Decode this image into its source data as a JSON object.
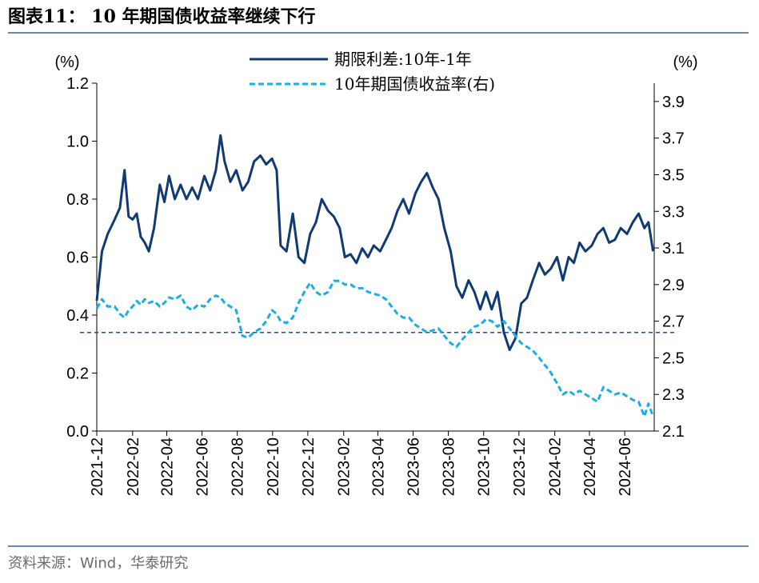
{
  "header": {
    "figure_title": "图表11： 10 年期国债收益率继续下行"
  },
  "footer": {
    "source": "资料来源：Wind，华泰研究"
  },
  "colors": {
    "spread": "#0f3a73",
    "yield": "#19aee6",
    "reference": "#1f4e8c",
    "rule": "#6e89a8"
  },
  "chart_data": {
    "type": "line",
    "title": "",
    "left_axis": {
      "unit_label": "(%)",
      "range": [
        0.0,
        1.2
      ],
      "ticks": [
        "0.0",
        "0.2",
        "0.4",
        "0.6",
        "0.8",
        "1.0",
        "1.2"
      ]
    },
    "right_axis": {
      "unit_label": "(%)",
      "range": [
        2.1,
        4.0
      ],
      "ticks": [
        "2.1",
        "2.3",
        "2.5",
        "2.7",
        "2.9",
        "3.1",
        "3.3",
        "3.5",
        "3.7",
        "3.9"
      ]
    },
    "x_axis": {
      "ticks": [
        "2021-12",
        "2022-02",
        "2022-04",
        "2022-06",
        "2022-08",
        "2022-10",
        "2022-12",
        "2023-02",
        "2023-04",
        "2023-06",
        "2023-08",
        "2023-10",
        "2023-12",
        "2024-02",
        "2024-04",
        "2024-06"
      ]
    },
    "legend": {
      "placement": "top-center"
    },
    "series": [
      {
        "name": "期限利差:10年-1年",
        "axis": "left",
        "style": "solid",
        "points": [
          [
            "2021-12-01",
            0.45
          ],
          [
            "2021-12-10",
            0.62
          ],
          [
            "2021-12-20",
            0.68
          ],
          [
            "2022-01-01",
            0.73
          ],
          [
            "2022-01-10",
            0.77
          ],
          [
            "2022-01-18",
            0.9
          ],
          [
            "2022-01-25",
            0.74
          ],
          [
            "2022-02-01",
            0.73
          ],
          [
            "2022-02-08",
            0.75
          ],
          [
            "2022-02-15",
            0.67
          ],
          [
            "2022-02-22",
            0.65
          ],
          [
            "2022-03-01",
            0.62
          ],
          [
            "2022-03-10",
            0.7
          ],
          [
            "2022-03-20",
            0.85
          ],
          [
            "2022-03-28",
            0.79
          ],
          [
            "2022-04-05",
            0.88
          ],
          [
            "2022-04-15",
            0.8
          ],
          [
            "2022-04-25",
            0.85
          ],
          [
            "2022-05-05",
            0.8
          ],
          [
            "2022-05-15",
            0.84
          ],
          [
            "2022-05-25",
            0.8
          ],
          [
            "2022-06-05",
            0.88
          ],
          [
            "2022-06-15",
            0.83
          ],
          [
            "2022-06-25",
            0.9
          ],
          [
            "2022-07-03",
            1.02
          ],
          [
            "2022-07-10",
            0.93
          ],
          [
            "2022-07-20",
            0.86
          ],
          [
            "2022-07-30",
            0.9
          ],
          [
            "2022-08-10",
            0.83
          ],
          [
            "2022-08-20",
            0.86
          ],
          [
            "2022-08-30",
            0.93
          ],
          [
            "2022-09-10",
            0.95
          ],
          [
            "2022-09-20",
            0.92
          ],
          [
            "2022-09-30",
            0.94
          ],
          [
            "2022-10-08",
            0.9
          ],
          [
            "2022-10-15",
            0.64
          ],
          [
            "2022-10-25",
            0.62
          ],
          [
            "2022-11-05",
            0.75
          ],
          [
            "2022-11-15",
            0.6
          ],
          [
            "2022-11-25",
            0.58
          ],
          [
            "2022-12-05",
            0.68
          ],
          [
            "2022-12-15",
            0.72
          ],
          [
            "2022-12-25",
            0.8
          ],
          [
            "2023-01-05",
            0.76
          ],
          [
            "2023-01-15",
            0.74
          ],
          [
            "2023-01-25",
            0.7
          ],
          [
            "2023-02-03",
            0.6
          ],
          [
            "2023-02-13",
            0.61
          ],
          [
            "2023-02-23",
            0.58
          ],
          [
            "2023-03-05",
            0.63
          ],
          [
            "2023-03-15",
            0.6
          ],
          [
            "2023-03-25",
            0.64
          ],
          [
            "2023-04-05",
            0.62
          ],
          [
            "2023-04-15",
            0.66
          ],
          [
            "2023-04-25",
            0.7
          ],
          [
            "2023-05-05",
            0.76
          ],
          [
            "2023-05-15",
            0.8
          ],
          [
            "2023-05-25",
            0.75
          ],
          [
            "2023-06-05",
            0.82
          ],
          [
            "2023-06-15",
            0.86
          ],
          [
            "2023-06-25",
            0.89
          ],
          [
            "2023-07-05",
            0.84
          ],
          [
            "2023-07-15",
            0.8
          ],
          [
            "2023-07-25",
            0.7
          ],
          [
            "2023-08-05",
            0.62
          ],
          [
            "2023-08-15",
            0.5
          ],
          [
            "2023-08-25",
            0.46
          ],
          [
            "2023-09-05",
            0.52
          ],
          [
            "2023-09-15",
            0.48
          ],
          [
            "2023-09-25",
            0.42
          ],
          [
            "2023-10-05",
            0.48
          ],
          [
            "2023-10-15",
            0.42
          ],
          [
            "2023-10-25",
            0.48
          ],
          [
            "2023-11-05",
            0.34
          ],
          [
            "2023-11-15",
            0.28
          ],
          [
            "2023-11-25",
            0.32
          ],
          [
            "2023-12-05",
            0.44
          ],
          [
            "2023-12-15",
            0.46
          ],
          [
            "2023-12-25",
            0.52
          ],
          [
            "2024-01-05",
            0.58
          ],
          [
            "2024-01-15",
            0.54
          ],
          [
            "2024-01-25",
            0.56
          ],
          [
            "2024-02-05",
            0.6
          ],
          [
            "2024-02-15",
            0.52
          ],
          [
            "2024-02-25",
            0.6
          ],
          [
            "2024-03-05",
            0.58
          ],
          [
            "2024-03-15",
            0.65
          ],
          [
            "2024-03-25",
            0.62
          ],
          [
            "2024-04-05",
            0.64
          ],
          [
            "2024-04-15",
            0.68
          ],
          [
            "2024-04-25",
            0.7
          ],
          [
            "2024-05-05",
            0.65
          ],
          [
            "2024-05-15",
            0.66
          ],
          [
            "2024-05-25",
            0.7
          ],
          [
            "2024-06-05",
            0.68
          ],
          [
            "2024-06-15",
            0.72
          ],
          [
            "2024-06-25",
            0.75
          ],
          [
            "2024-07-05",
            0.7
          ],
          [
            "2024-07-12",
            0.72
          ],
          [
            "2024-07-20",
            0.62
          ]
        ]
      },
      {
        "name": "10年期国债收益率(右)",
        "axis": "right",
        "style": "dashed",
        "points": [
          [
            "2021-12-01",
            2.77
          ],
          [
            "2021-12-10",
            2.82
          ],
          [
            "2021-12-20",
            2.78
          ],
          [
            "2022-01-01",
            2.78
          ],
          [
            "2022-01-10",
            2.74
          ],
          [
            "2022-01-18",
            2.72
          ],
          [
            "2022-01-25",
            2.76
          ],
          [
            "2022-02-01",
            2.78
          ],
          [
            "2022-02-08",
            2.81
          ],
          [
            "2022-02-15",
            2.79
          ],
          [
            "2022-02-22",
            2.82
          ],
          [
            "2022-03-01",
            2.8
          ],
          [
            "2022-03-10",
            2.81
          ],
          [
            "2022-03-20",
            2.78
          ],
          [
            "2022-03-28",
            2.8
          ],
          [
            "2022-04-05",
            2.83
          ],
          [
            "2022-04-15",
            2.82
          ],
          [
            "2022-04-25",
            2.84
          ],
          [
            "2022-05-05",
            2.78
          ],
          [
            "2022-05-15",
            2.76
          ],
          [
            "2022-05-25",
            2.79
          ],
          [
            "2022-06-05",
            2.78
          ],
          [
            "2022-06-15",
            2.82
          ],
          [
            "2022-06-25",
            2.84
          ],
          [
            "2022-07-03",
            2.83
          ],
          [
            "2022-07-10",
            2.8
          ],
          [
            "2022-07-20",
            2.78
          ],
          [
            "2022-07-30",
            2.76
          ],
          [
            "2022-08-10",
            2.62
          ],
          [
            "2022-08-20",
            2.61
          ],
          [
            "2022-08-30",
            2.64
          ],
          [
            "2022-09-10",
            2.66
          ],
          [
            "2022-09-20",
            2.7
          ],
          [
            "2022-09-30",
            2.76
          ],
          [
            "2022-10-08",
            2.74
          ],
          [
            "2022-10-15",
            2.7
          ],
          [
            "2022-10-25",
            2.69
          ],
          [
            "2022-11-05",
            2.72
          ],
          [
            "2022-11-15",
            2.8
          ],
          [
            "2022-11-25",
            2.86
          ],
          [
            "2022-12-05",
            2.91
          ],
          [
            "2022-12-15",
            2.86
          ],
          [
            "2022-12-25",
            2.84
          ],
          [
            "2023-01-05",
            2.86
          ],
          [
            "2023-01-15",
            2.92
          ],
          [
            "2023-01-25",
            2.92
          ],
          [
            "2023-02-03",
            2.9
          ],
          [
            "2023-02-13",
            2.9
          ],
          [
            "2023-02-23",
            2.88
          ],
          [
            "2023-03-05",
            2.88
          ],
          [
            "2023-03-15",
            2.86
          ],
          [
            "2023-03-25",
            2.85
          ],
          [
            "2023-04-05",
            2.84
          ],
          [
            "2023-04-15",
            2.82
          ],
          [
            "2023-04-25",
            2.78
          ],
          [
            "2023-05-05",
            2.74
          ],
          [
            "2023-05-15",
            2.72
          ],
          [
            "2023-05-25",
            2.72
          ],
          [
            "2023-06-05",
            2.68
          ],
          [
            "2023-06-15",
            2.66
          ],
          [
            "2023-06-25",
            2.64
          ],
          [
            "2023-07-05",
            2.65
          ],
          [
            "2023-07-15",
            2.66
          ],
          [
            "2023-07-25",
            2.62
          ],
          [
            "2023-08-05",
            2.58
          ],
          [
            "2023-08-15",
            2.56
          ],
          [
            "2023-08-25",
            2.6
          ],
          [
            "2023-09-05",
            2.64
          ],
          [
            "2023-09-15",
            2.67
          ],
          [
            "2023-09-25",
            2.68
          ],
          [
            "2023-10-05",
            2.71
          ],
          [
            "2023-10-15",
            2.7
          ],
          [
            "2023-10-25",
            2.67
          ],
          [
            "2023-11-05",
            2.7
          ],
          [
            "2023-11-15",
            2.66
          ],
          [
            "2023-11-25",
            2.62
          ],
          [
            "2023-12-05",
            2.58
          ],
          [
            "2023-12-15",
            2.56
          ],
          [
            "2023-12-25",
            2.54
          ],
          [
            "2024-01-05",
            2.5
          ],
          [
            "2024-01-15",
            2.46
          ],
          [
            "2024-01-25",
            2.42
          ],
          [
            "2024-02-05",
            2.36
          ],
          [
            "2024-02-15",
            2.3
          ],
          [
            "2024-02-25",
            2.32
          ],
          [
            "2024-03-05",
            2.3
          ],
          [
            "2024-03-15",
            2.32
          ],
          [
            "2024-03-25",
            2.3
          ],
          [
            "2024-04-05",
            2.28
          ],
          [
            "2024-04-15",
            2.26
          ],
          [
            "2024-04-25",
            2.34
          ],
          [
            "2024-05-05",
            2.32
          ],
          [
            "2024-05-15",
            2.3
          ],
          [
            "2024-05-25",
            2.31
          ],
          [
            "2024-06-05",
            2.29
          ],
          [
            "2024-06-15",
            2.27
          ],
          [
            "2024-06-25",
            2.26
          ],
          [
            "2024-07-05",
            2.18
          ],
          [
            "2024-07-12",
            2.25
          ],
          [
            "2024-07-20",
            2.18
          ]
        ]
      }
    ],
    "reference_line": {
      "axis": "left",
      "value": 0.34,
      "style": "dashed"
    },
    "grid": false
  }
}
